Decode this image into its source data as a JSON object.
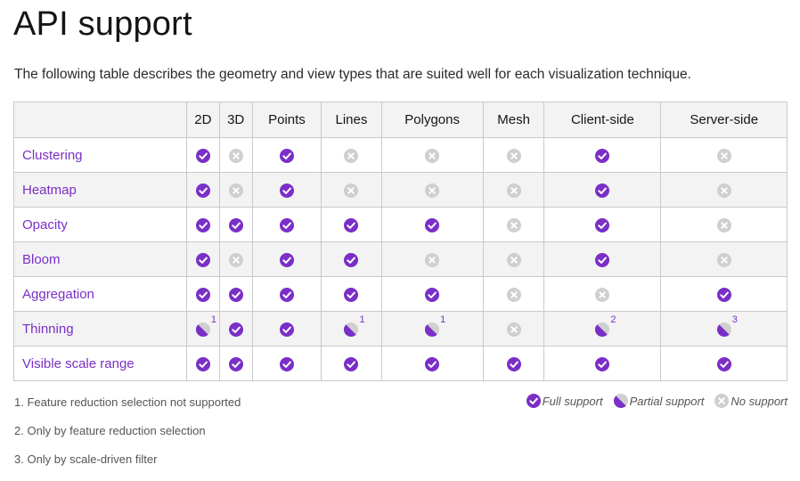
{
  "title": "API support",
  "description": "The following table describes the geometry and view types that are suited well for each visualization technique.",
  "columns": [
    "2D",
    "3D",
    "Points",
    "Lines",
    "Polygons",
    "Mesh",
    "Client-side",
    "Server-side"
  ],
  "rows": [
    {
      "name": "Clustering",
      "cells": [
        {
          "s": "full"
        },
        {
          "s": "none"
        },
        {
          "s": "full"
        },
        {
          "s": "none"
        },
        {
          "s": "none"
        },
        {
          "s": "none"
        },
        {
          "s": "full"
        },
        {
          "s": "none"
        }
      ]
    },
    {
      "name": "Heatmap",
      "cells": [
        {
          "s": "full"
        },
        {
          "s": "none"
        },
        {
          "s": "full"
        },
        {
          "s": "none"
        },
        {
          "s": "none"
        },
        {
          "s": "none"
        },
        {
          "s": "full"
        },
        {
          "s": "none"
        }
      ]
    },
    {
      "name": "Opacity",
      "cells": [
        {
          "s": "full"
        },
        {
          "s": "full"
        },
        {
          "s": "full"
        },
        {
          "s": "full"
        },
        {
          "s": "full"
        },
        {
          "s": "none"
        },
        {
          "s": "full"
        },
        {
          "s": "none"
        }
      ]
    },
    {
      "name": "Bloom",
      "cells": [
        {
          "s": "full"
        },
        {
          "s": "none"
        },
        {
          "s": "full"
        },
        {
          "s": "full"
        },
        {
          "s": "none"
        },
        {
          "s": "none"
        },
        {
          "s": "full"
        },
        {
          "s": "none"
        }
      ]
    },
    {
      "name": "Aggregation",
      "cells": [
        {
          "s": "full"
        },
        {
          "s": "full"
        },
        {
          "s": "full"
        },
        {
          "s": "full"
        },
        {
          "s": "full"
        },
        {
          "s": "none"
        },
        {
          "s": "none"
        },
        {
          "s": "full"
        }
      ]
    },
    {
      "name": "Thinning",
      "cells": [
        {
          "s": "partial",
          "note": "1"
        },
        {
          "s": "full"
        },
        {
          "s": "full"
        },
        {
          "s": "partial",
          "note": "1"
        },
        {
          "s": "partial",
          "note": "1"
        },
        {
          "s": "none"
        },
        {
          "s": "partial",
          "note": "2"
        },
        {
          "s": "partial",
          "note": "3"
        }
      ]
    },
    {
      "name": "Visible scale range",
      "cells": [
        {
          "s": "full"
        },
        {
          "s": "full"
        },
        {
          "s": "full"
        },
        {
          "s": "full"
        },
        {
          "s": "full"
        },
        {
          "s": "full"
        },
        {
          "s": "full"
        },
        {
          "s": "full"
        }
      ]
    }
  ],
  "footnotes": [
    "1. Feature reduction selection not supported",
    "2. Only by feature reduction selection",
    "3. Only by scale-driven filter"
  ],
  "legend": {
    "full": "Full support",
    "partial": "Partial support",
    "none": "No support"
  },
  "colors": {
    "accent": "#7a2fc7",
    "none_icon": "#cfcfcf",
    "partial_gray": "#cfcfcf"
  },
  "icons": {
    "full": "check-circle-icon",
    "partial": "partial-circle-icon",
    "none": "x-circle-icon"
  }
}
